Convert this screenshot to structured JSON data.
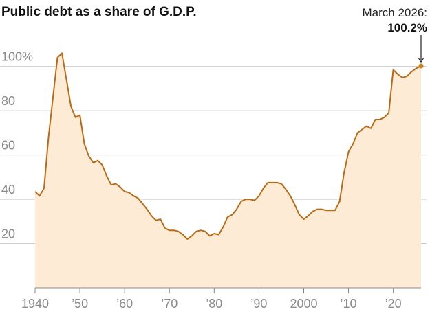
{
  "chart_data": {
    "type": "area",
    "title": "Public debt as a share of G.D.P.",
    "xlabel": "",
    "ylabel": "",
    "xlim": [
      1940,
      2026.2
    ],
    "ylim": [
      0,
      112
    ],
    "y_ticks": [
      {
        "value": 20,
        "label": "20"
      },
      {
        "value": 40,
        "label": "40"
      },
      {
        "value": 60,
        "label": "60"
      },
      {
        "value": 80,
        "label": "80"
      },
      {
        "value": 100,
        "label": "100%"
      }
    ],
    "x_ticks": [
      {
        "value": 1940,
        "label": "1940"
      },
      {
        "value": 1950,
        "label": "’50"
      },
      {
        "value": 1960,
        "label": "’60"
      },
      {
        "value": 1970,
        "label": "’70"
      },
      {
        "value": 1980,
        "label": "’80"
      },
      {
        "value": 1990,
        "label": "’90"
      },
      {
        "value": 2000,
        "label": "2000"
      },
      {
        "value": 2010,
        "label": "’10"
      },
      {
        "value": 2020,
        "label": "’20"
      }
    ],
    "grid": true,
    "colors": {
      "line": "#b86b14",
      "fill": "#fdebd6",
      "point": "#c8801e"
    },
    "series": [
      {
        "x": [
          1940,
          1941,
          1942,
          1943,
          1944,
          1945,
          1946,
          1947,
          1948,
          1949,
          1950,
          1951,
          1952,
          1953,
          1954,
          1955,
          1956,
          1957,
          1958,
          1959,
          1960,
          1961,
          1962,
          1963,
          1964,
          1965,
          1966,
          1967,
          1968,
          1969,
          1970,
          1971,
          1972,
          1973,
          1974,
          1975,
          1976,
          1977,
          1978,
          1979,
          1980,
          1981,
          1982,
          1983,
          1984,
          1985,
          1986,
          1987,
          1988,
          1989,
          1990,
          1991,
          1992,
          1993,
          1994,
          1995,
          1996,
          1997,
          1998,
          1999,
          2000,
          2001,
          2002,
          2003,
          2004,
          2005,
          2006,
          2007,
          2008,
          2009,
          2010,
          2011,
          2012,
          2013,
          2014,
          2015,
          2016,
          2017,
          2018,
          2019,
          2020,
          2021,
          2022,
          2023,
          2024,
          2025,
          2026.2
        ],
        "y": [
          43.5,
          41.5,
          45,
          68,
          86,
          104,
          106,
          94,
          82,
          77,
          78,
          65,
          59.5,
          56.5,
          57.5,
          55.5,
          50.5,
          46.5,
          47,
          45.5,
          43.5,
          43,
          41.5,
          40.5,
          38,
          35.5,
          32.5,
          30.5,
          31,
          27,
          26,
          26,
          25.5,
          24,
          22,
          23.5,
          25.5,
          26,
          25.5,
          23.5,
          24.5,
          24,
          27.5,
          32,
          33,
          35.5,
          39,
          40,
          40,
          39.5,
          41.5,
          45,
          47.5,
          47.5,
          47.5,
          47,
          44.5,
          41.5,
          37.5,
          33,
          31,
          32.5,
          34.5,
          35.5,
          35.5,
          35,
          35,
          35,
          39,
          52,
          61.5,
          65,
          70,
          71.5,
          73,
          72,
          76,
          76,
          77,
          79,
          98.5,
          96.5,
          95,
          95.5,
          97.5,
          99,
          100.2
        ]
      }
    ],
    "annotations": [
      {
        "label": "March 2026:",
        "value_label": "100.2%",
        "x": 2026.2,
        "y": 100.2
      }
    ]
  }
}
